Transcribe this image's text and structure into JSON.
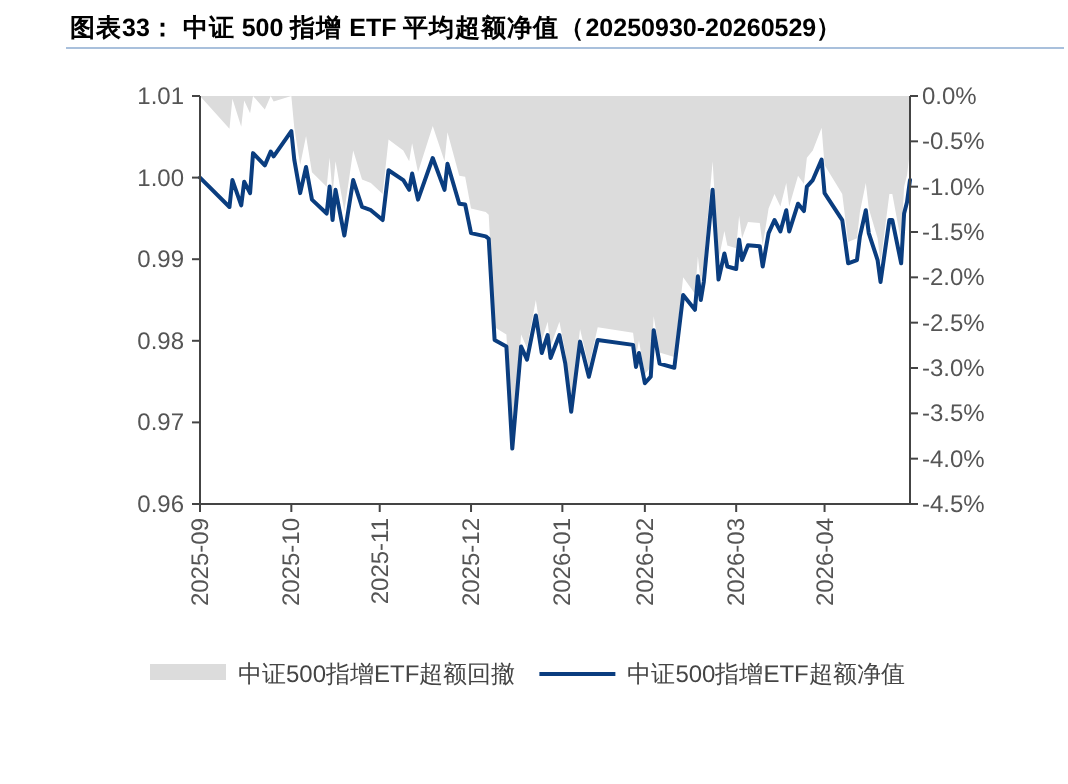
{
  "chart_data": {
    "type": "line",
    "title": "图表33：  中证 500 指增 ETF 平均超额净值（20250930-20260529）",
    "x": [
      "2025-09-30",
      "2025-10-10",
      "2025-10-11",
      "2025-10-14",
      "2025-10-15",
      "2025-10-17",
      "2025-10-18",
      "2025-10-22",
      "2025-10-24",
      "2025-10-25",
      "2025-10-31",
      "2025-11-01",
      "2025-11-03",
      "2025-11-05",
      "2025-11-07",
      "2025-11-12",
      "2025-11-13",
      "2025-11-14",
      "2025-11-15",
      "2025-11-18",
      "2025-11-21",
      "2025-11-24",
      "2025-11-27",
      "2025-12-01",
      "2025-12-03",
      "2025-12-08",
      "2025-12-10",
      "2025-12-11",
      "2025-12-13",
      "2025-12-18",
      "2025-12-22",
      "2025-12-23",
      "2025-12-27",
      "2025-12-29",
      "2025-12-31",
      "2026-01-05",
      "2026-01-06",
      "2026-01-08",
      "2026-01-12",
      "2026-01-14",
      "2026-01-17",
      "2026-01-19",
      "2026-01-22",
      "2026-01-24",
      "2026-01-26",
      "2026-01-27",
      "2026-01-30",
      "2026-02-01",
      "2026-02-03",
      "2026-02-06",
      "2026-02-09",
      "2026-02-12",
      "2026-02-24",
      "2026-02-25",
      "2026-02-26",
      "2026-02-28",
      "2026-03-02",
      "2026-03-03",
      "2026-03-05",
      "2026-03-10",
      "2026-03-13",
      "2026-03-17",
      "2026-03-18",
      "2026-03-19",
      "2026-03-20",
      "2026-03-23",
      "2026-03-25",
      "2026-03-27",
      "2026-03-28",
      "2026-03-31",
      "2026-04-01",
      "2026-04-02",
      "2026-04-04",
      "2026-04-08",
      "2026-04-09",
      "2026-04-11",
      "2026-04-13",
      "2026-04-15",
      "2026-04-17",
      "2026-04-18",
      "2026-04-21",
      "2026-04-23",
      "2026-04-24",
      "2026-04-26",
      "2026-04-29",
      "2026-04-30",
      "2026-05-06",
      "2026-05-08",
      "2026-05-11",
      "2026-05-12",
      "2026-05-14",
      "2026-05-15",
      "2026-05-18",
      "2026-05-19",
      "2026-05-22",
      "2026-05-23",
      "2026-05-26",
      "2026-05-27",
      "2026-05-28",
      "2026-05-29"
    ],
    "series": [
      {
        "name": "中证500指增ETF超额回撤",
        "type": "area",
        "axis": "y2",
        "color": "#dcdcdc",
        "values": [
          0,
          -0.36,
          -0.03,
          -0.34,
          -0.05,
          -0.19,
          0,
          -0.15,
          0,
          -0.06,
          0,
          -0.35,
          -0.76,
          -0.44,
          -0.84,
          -1.0,
          -0.68,
          -1.08,
          -0.72,
          -1.27,
          -0.6,
          -0.92,
          -0.96,
          -1.08,
          -0.48,
          -0.6,
          -0.72,
          -0.52,
          -0.84,
          -0.33,
          -0.72,
          -0.4,
          -0.88,
          -0.89,
          -1.24,
          -1.28,
          -1.31,
          -2.55,
          -2.63,
          -3.87,
          -2.63,
          -2.78,
          -2.25,
          -2.7,
          -2.49,
          -2.76,
          -2.49,
          -2.83,
          -3.42,
          -2.57,
          -2.99,
          -2.55,
          -2.61,
          -2.87,
          -2.7,
          -3.07,
          -2.99,
          -2.43,
          -2.83,
          -2.88,
          -2.0,
          -2.18,
          -1.77,
          -2.06,
          -1.84,
          -0.72,
          -1.81,
          -1.49,
          -1.65,
          -1.68,
          -1.32,
          -1.57,
          -1.39,
          -1.4,
          -1.65,
          -1.24,
          -1.08,
          -1.22,
          -0.96,
          -1.22,
          -0.88,
          -0.97,
          -0.68,
          -0.6,
          -0.35,
          -0.76,
          -1.08,
          -1.61,
          -1.57,
          -1.28,
          -0.96,
          -1.24,
          -1.57,
          -1.84,
          -1.08,
          -1.08,
          -1.61,
          -1.0,
          -0.87,
          -0.6
        ]
      },
      {
        "name": "中证500指增ETF超额净值",
        "color": "#0a3d7f",
        "values": [
          1.0,
          0.9964,
          0.9997,
          0.9966,
          0.9995,
          0.9981,
          1.003,
          1.0015,
          1.0032,
          1.0026,
          1.0057,
          1.0022,
          0.9981,
          1.0013,
          0.9973,
          0.9956,
          0.9989,
          0.9948,
          0.9985,
          0.9929,
          0.9997,
          0.9964,
          0.996,
          0.9948,
          1.0009,
          0.9997,
          0.9985,
          1.0005,
          0.9973,
          1.0024,
          0.9985,
          1.0017,
          0.9968,
          0.9967,
          0.9932,
          0.9928,
          0.9925,
          0.9801,
          0.9793,
          0.9668,
          0.9793,
          0.9777,
          0.9831,
          0.9785,
          0.9807,
          0.9779,
          0.9807,
          0.9772,
          0.9713,
          0.9799,
          0.9756,
          0.9801,
          0.9795,
          0.9768,
          0.9785,
          0.9748,
          0.9756,
          0.9813,
          0.9772,
          0.9767,
          0.9856,
          0.9838,
          0.9879,
          0.985,
          0.9872,
          0.9985,
          0.9875,
          0.9907,
          0.9891,
          0.9888,
          0.9924,
          0.9899,
          0.9917,
          0.9916,
          0.9891,
          0.9932,
          0.9948,
          0.9934,
          0.996,
          0.9934,
          0.9968,
          0.9959,
          0.9989,
          0.9997,
          1.0022,
          0.9981,
          0.9948,
          0.9895,
          0.9899,
          0.9928,
          0.996,
          0.9932,
          0.9899,
          0.9872,
          0.9948,
          0.9948,
          0.9895,
          0.9956,
          0.997,
          0.9997
        ]
      }
    ],
    "xlim": [
      "2025-09-30",
      "2026-05-29"
    ],
    "xticks": [
      {
        "value": "2025-09-30",
        "label": "2025-09"
      },
      {
        "value": "2025-10-31",
        "label": "2025-10"
      },
      {
        "value": "2025-11-30",
        "label": "2025-11"
      },
      {
        "value": "2025-12-31",
        "label": "2025-12"
      },
      {
        "value": "2026-01-31",
        "label": "2026-01"
      },
      {
        "value": "2026-02-28",
        "label": "2026-02"
      },
      {
        "value": "2026-03-31",
        "label": "2026-03"
      },
      {
        "value": "2026-04-30",
        "label": "2026-04"
      }
    ],
    "ylim": [
      0.96,
      1.01
    ],
    "yticks": [
      {
        "value": 0.96,
        "label": "0.96"
      },
      {
        "value": 0.97,
        "label": "0.97"
      },
      {
        "value": 0.98,
        "label": "0.98"
      },
      {
        "value": 0.99,
        "label": "0.99"
      },
      {
        "value": 1.0,
        "label": "1.00"
      },
      {
        "value": 1.01,
        "label": "1.01"
      }
    ],
    "y2lim": [
      -4.5,
      0
    ],
    "y2ticks": [
      {
        "value": 0,
        "label": "0.0%"
      },
      {
        "value": -0.5,
        "label": "-0.5%"
      },
      {
        "value": -1,
        "label": "-1.0%"
      },
      {
        "value": -1.5,
        "label": "-1.5%"
      },
      {
        "value": -2,
        "label": "-2.0%"
      },
      {
        "value": -2.5,
        "label": "-2.5%"
      },
      {
        "value": -3,
        "label": "-3.0%"
      },
      {
        "value": -3.5,
        "label": "-3.5%"
      },
      {
        "value": -4,
        "label": "-4.0%"
      },
      {
        "value": -4.5,
        "label": "-4.5%"
      }
    ],
    "legend": "bottom"
  }
}
